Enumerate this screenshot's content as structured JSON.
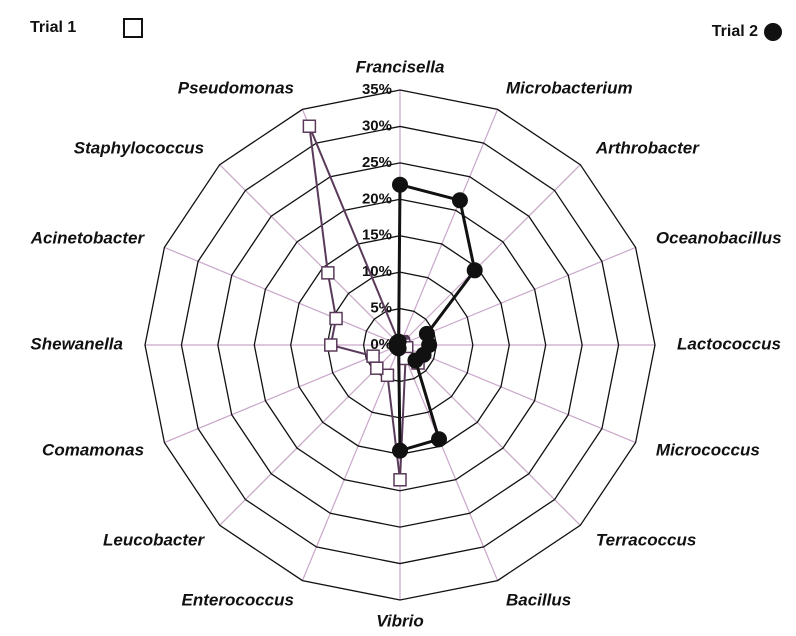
{
  "chart_data": {
    "type": "radar",
    "categories": [
      "Francisella",
      "Microbacterium",
      "Arthrobacter",
      "Oceanobacillus",
      "Lactococcus",
      "Micrococcus",
      "Terracoccus",
      "Bacillus",
      "Vibrio",
      "Enterococcus",
      "Leucobacter",
      "Comamonas",
      "Shewanella",
      "Acinetobacter",
      "Staphylococcus",
      "Pseudomonas"
    ],
    "series": [
      {
        "name": "Trial 1",
        "color": "#5a3a5a",
        "marker": "square",
        "values": [
          0,
          0.5,
          0.5,
          0.5,
          0.5,
          1,
          3.5,
          2,
          18.5,
          4.5,
          4.5,
          4,
          9.5,
          9.5,
          14,
          32.5
        ]
      },
      {
        "name": "Trial 2",
        "color": "#111111",
        "marker": "circle",
        "values": [
          22,
          21.5,
          14.5,
          4,
          4,
          3.5,
          3,
          14,
          14.5,
          0.5,
          0.5,
          0.5,
          0.5,
          0.5,
          0.5,
          0.5
        ]
      }
    ],
    "ylim": [
      0,
      35
    ],
    "yticks": [
      {
        "value": 0,
        "label": "0%"
      },
      {
        "value": 5,
        "label": "5%"
      },
      {
        "value": 10,
        "label": "10%"
      },
      {
        "value": 15,
        "label": "15%"
      },
      {
        "value": 20,
        "label": "20%"
      },
      {
        "value": 25,
        "label": "25%"
      },
      {
        "value": 30,
        "label": "30%"
      },
      {
        "value": 35,
        "label": "35%"
      }
    ],
    "grid": true,
    "legend": [
      "top-left",
      "top-right"
    ]
  }
}
